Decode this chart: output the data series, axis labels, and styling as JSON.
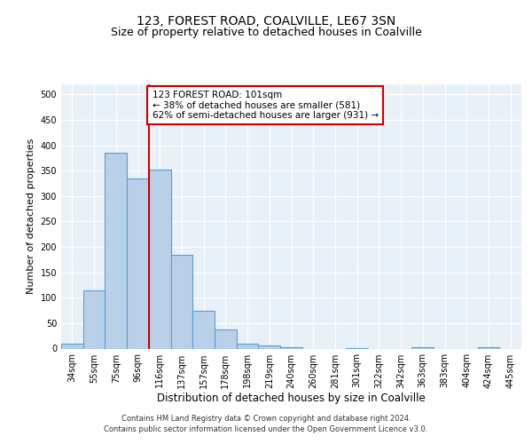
{
  "title1": "123, FOREST ROAD, COALVILLE, LE67 3SN",
  "title2": "Size of property relative to detached houses in Coalville",
  "xlabel": "Distribution of detached houses by size in Coalville",
  "ylabel": "Number of detached properties",
  "categories": [
    "34sqm",
    "55sqm",
    "75sqm",
    "96sqm",
    "116sqm",
    "137sqm",
    "157sqm",
    "178sqm",
    "198sqm",
    "219sqm",
    "240sqm",
    "260sqm",
    "281sqm",
    "301sqm",
    "322sqm",
    "342sqm",
    "363sqm",
    "383sqm",
    "404sqm",
    "424sqm",
    "445sqm"
  ],
  "values": [
    10,
    115,
    385,
    335,
    353,
    185,
    75,
    37,
    10,
    6,
    2,
    0,
    0,
    1,
    0,
    0,
    3,
    0,
    0,
    2,
    0
  ],
  "bar_color": "#b8d0e8",
  "bar_edge_color": "#5a9fd4",
  "bar_edge_width": 0.8,
  "red_line_x": 3.5,
  "red_line_color": "#cc0000",
  "annotation_text": "123 FOREST ROAD: 101sqm\n← 38% of detached houses are smaller (581)\n62% of semi-detached houses are larger (931) →",
  "annotation_box_color": "#ffffff",
  "annotation_box_edge": "#cc0000",
  "ylim": [
    0,
    520
  ],
  "yticks": [
    0,
    50,
    100,
    150,
    200,
    250,
    300,
    350,
    400,
    450,
    500
  ],
  "footer1": "Contains HM Land Registry data © Crown copyright and database right 2024.",
  "footer2": "Contains public sector information licensed under the Open Government Licence v3.0.",
  "background_color": "#e8f0f8",
  "grid_color": "#ffffff",
  "title1_fontsize": 10,
  "title2_fontsize": 9,
  "tick_fontsize": 7,
  "ylabel_fontsize": 8,
  "xlabel_fontsize": 8.5,
  "footer_fontsize": 6,
  "annot_fontsize": 7.5
}
